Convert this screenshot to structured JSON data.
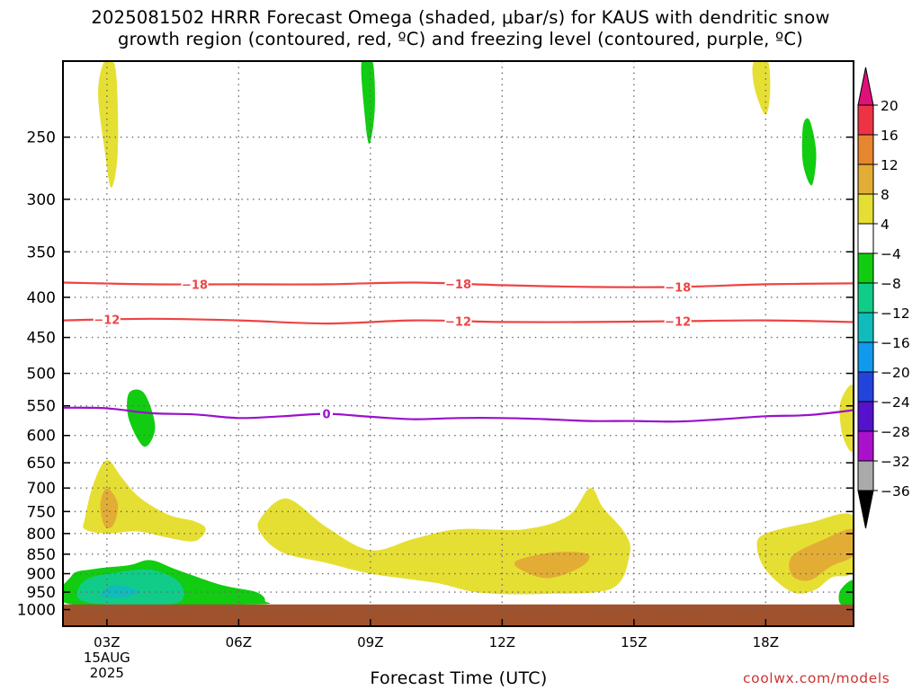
{
  "title": {
    "line1": "2025081502 HRRR Forecast Omega (shaded, μbar/s) for KAUS with dendritic snow",
    "line2": "growth region (contoured, red, ºC) and freezing level (contoured, purple, ºC)"
  },
  "credit": "coolwx.com/models",
  "chart_data": {
    "type": "heatmap",
    "xlabel": "Forecast Time (UTC)",
    "ylabel": "",
    "x_range_hours_utc": [
      2.0,
      20.0
    ],
    "x_ticks": [
      {
        "hour": 3,
        "label": "03Z",
        "sub": [
          "15AUG",
          "2025"
        ]
      },
      {
        "hour": 6,
        "label": "06Z"
      },
      {
        "hour": 9,
        "label": "09Z"
      },
      {
        "hour": 12,
        "label": "12Z"
      },
      {
        "hour": 15,
        "label": "15Z"
      },
      {
        "hour": 18,
        "label": "18Z"
      }
    ],
    "y_axis_pressure_hPa": {
      "scale": "log",
      "reversed": true,
      "range": [
        200,
        1050
      ],
      "ticks": [
        250,
        300,
        350,
        400,
        450,
        500,
        550,
        600,
        650,
        700,
        750,
        800,
        850,
        900,
        950,
        1000
      ]
    },
    "grid": true,
    "surface_fill": {
      "color": "#a0522d",
      "top_hPa": 985
    },
    "colorbar": {
      "ticks": [
        "20",
        "16",
        "12",
        "8",
        "4",
        "−4",
        "−8",
        "−12",
        "−16",
        "−20",
        "−24",
        "−28",
        "−32",
        "−36"
      ],
      "bins": [
        {
          "range": [
            16,
            20
          ],
          "color": "#ee3344"
        },
        {
          "range": [
            12,
            16
          ],
          "color": "#e8852f"
        },
        {
          "range": [
            8,
            12
          ],
          "color": "#e3ad35"
        },
        {
          "range": [
            4,
            8
          ],
          "color": "#e6df33"
        },
        {
          "range": [
            -4,
            4
          ],
          "color": "#ffffff"
        },
        {
          "range": [
            -8,
            -4
          ],
          "color": "#11cc11"
        },
        {
          "range": [
            -12,
            -8
          ],
          "color": "#11cc88"
        },
        {
          "range": [
            -16,
            -12
          ],
          "color": "#11bbbb"
        },
        {
          "range": [
            -20,
            -16
          ],
          "color": "#1199ee"
        },
        {
          "range": [
            -24,
            -20
          ],
          "color": "#2244dd"
        },
        {
          "range": [
            -28,
            -24
          ],
          "color": "#5511cc"
        },
        {
          "range": [
            -32,
            -28
          ],
          "color": "#aa11cc"
        },
        {
          "range": [
            -36,
            -32
          ],
          "color": "#aaaaaa"
        }
      ],
      "over_color": "#e0107a",
      "under_color": "#000000"
    },
    "omega_regions": [
      {
        "color": "#e6df33",
        "points": [
          [
            2.95,
            200
          ],
          [
            3.2,
            205
          ],
          [
            3.25,
            260
          ],
          [
            3.1,
            290
          ],
          [
            2.95,
            260
          ],
          [
            2.8,
            220
          ]
        ]
      },
      {
        "color": "#11cc11",
        "points": [
          [
            8.8,
            200
          ],
          [
            9.05,
            200
          ],
          [
            9.1,
            230
          ],
          [
            8.97,
            255
          ],
          [
            8.85,
            228
          ]
        ]
      },
      {
        "color": "#e6df33",
        "points": [
          [
            17.75,
            200
          ],
          [
            18.05,
            200
          ],
          [
            18.1,
            220
          ],
          [
            18.0,
            234
          ],
          [
            17.8,
            222
          ],
          [
            17.7,
            208
          ]
        ]
      },
      {
        "color": "#11cc11",
        "points": [
          [
            18.85,
            242
          ],
          [
            19.0,
            238
          ],
          [
            19.15,
            262
          ],
          [
            19.05,
            288
          ],
          [
            18.85,
            270
          ]
        ]
      },
      {
        "color": "#11cc11",
        "points": [
          [
            3.5,
            530
          ],
          [
            3.85,
            530
          ],
          [
            4.1,
            585
          ],
          [
            3.85,
            620
          ],
          [
            3.5,
            572
          ]
        ]
      },
      {
        "color": "#e6df33",
        "points": [
          [
            20.0,
            520
          ],
          [
            19.7,
            545
          ],
          [
            19.75,
            600
          ],
          [
            20.0,
            625
          ]
        ]
      },
      {
        "color": "#e6df33",
        "points": [
          [
            2.5,
            765
          ],
          [
            2.7,
            690
          ],
          [
            3.0,
            645
          ],
          [
            3.35,
            680
          ],
          [
            3.75,
            720
          ],
          [
            4.4,
            757
          ],
          [
            5.0,
            772
          ],
          [
            5.25,
            790
          ],
          [
            5.0,
            818
          ],
          [
            4.4,
            810
          ],
          [
            3.7,
            795
          ],
          [
            3.0,
            800
          ],
          [
            2.5,
            790
          ]
        ]
      },
      {
        "color": "#e3ad35",
        "points": [
          [
            2.85,
            735
          ],
          [
            3.0,
            700
          ],
          [
            3.25,
            733
          ],
          [
            3.15,
            780
          ],
          [
            2.95,
            783
          ]
        ]
      },
      {
        "color": "#e6df33",
        "points": [
          [
            6.5,
            765
          ],
          [
            7.1,
            722
          ],
          [
            8.0,
            785
          ],
          [
            9.0,
            840
          ],
          [
            10.0,
            812
          ],
          [
            11.0,
            790
          ],
          [
            12.5,
            790
          ],
          [
            13.5,
            760
          ],
          [
            14.0,
            700
          ],
          [
            14.3,
            742
          ],
          [
            14.8,
            800
          ],
          [
            14.9,
            852
          ],
          [
            14.5,
            940
          ],
          [
            13.0,
            955
          ],
          [
            11.5,
            952
          ],
          [
            10.5,
            925
          ],
          [
            9.0,
            900
          ],
          [
            8.0,
            872
          ],
          [
            7.0,
            846
          ],
          [
            6.5,
            800
          ]
        ]
      },
      {
        "color": "#e3ad35",
        "points": [
          [
            12.35,
            865
          ],
          [
            13.2,
            845
          ],
          [
            13.95,
            850
          ],
          [
            13.8,
            882
          ],
          [
            13.05,
            912
          ],
          [
            12.4,
            888
          ]
        ]
      },
      {
        "color": "#e6df33",
        "points": [
          [
            20.0,
            760
          ],
          [
            19.0,
            775
          ],
          [
            18.0,
            800
          ],
          [
            17.8,
            830
          ],
          [
            18.0,
            890
          ],
          [
            18.6,
            950
          ],
          [
            19.1,
            945
          ],
          [
            19.5,
            910
          ],
          [
            20.0,
            890
          ]
        ]
      },
      {
        "color": "#e3ad35",
        "points": [
          [
            20.0,
            790
          ],
          [
            19.3,
            815
          ],
          [
            18.6,
            855
          ],
          [
            18.6,
            905
          ],
          [
            19.0,
            918
          ],
          [
            19.5,
            880
          ],
          [
            20.0,
            852
          ]
        ]
      },
      {
        "color": "#11cc11",
        "points": [
          [
            2.2,
            985
          ],
          [
            2.2,
            905
          ],
          [
            2.7,
            888
          ],
          [
            3.5,
            878
          ],
          [
            4.0,
            865
          ],
          [
            4.6,
            890
          ],
          [
            5.6,
            930
          ],
          [
            6.4,
            950
          ],
          [
            6.6,
            975
          ],
          [
            6.3,
            985
          ]
        ]
      },
      {
        "color": "#11cc88",
        "points": [
          [
            2.35,
            968
          ],
          [
            2.5,
            918
          ],
          [
            3.2,
            897
          ],
          [
            4.0,
            890
          ],
          [
            4.6,
            918
          ],
          [
            4.75,
            962
          ],
          [
            4.4,
            985
          ],
          [
            3.0,
            985
          ]
        ]
      },
      {
        "color": "#11bbbb",
        "points": [
          [
            2.85,
            957
          ],
          [
            3.1,
            932
          ],
          [
            3.45,
            935
          ],
          [
            3.75,
            950
          ],
          [
            3.4,
            965
          ],
          [
            3.0,
            965
          ]
        ]
      },
      {
        "color": "#11cc11",
        "points": [
          [
            20.0,
            918
          ],
          [
            19.7,
            945
          ],
          [
            19.7,
            983
          ],
          [
            20.0,
            985
          ]
        ]
      }
    ],
    "contours": [
      {
        "name": "-18",
        "color": "#ee4444",
        "kind": "dendritic snow growth",
        "points": [
          [
            2.0,
            383
          ],
          [
            4.0,
            385
          ],
          [
            6.0,
            385
          ],
          [
            8.0,
            385
          ],
          [
            10.0,
            383
          ],
          [
            12.0,
            386
          ],
          [
            14.0,
            388
          ],
          [
            16.0,
            388
          ],
          [
            18.0,
            385
          ],
          [
            20.0,
            384
          ]
        ],
        "labels": [
          5.0,
          11.0,
          16.0
        ]
      },
      {
        "name": "-12",
        "color": "#ee4444",
        "kind": "dendritic snow growth",
        "points": [
          [
            2.0,
            428
          ],
          [
            4.0,
            426
          ],
          [
            6.0,
            428
          ],
          [
            8.0,
            432
          ],
          [
            10.0,
            428
          ],
          [
            12.0,
            430
          ],
          [
            14.0,
            430
          ],
          [
            16.0,
            429
          ],
          [
            18.0,
            428
          ],
          [
            20.0,
            430
          ]
        ],
        "labels": [
          3.0,
          11.0,
          16.0
        ]
      },
      {
        "name": "0",
        "color": "#9911cc",
        "kind": "freezing level",
        "points": [
          [
            2.0,
            553
          ],
          [
            3.0,
            554
          ],
          [
            4.0,
            562
          ],
          [
            5.0,
            564
          ],
          [
            6.0,
            570
          ],
          [
            7.0,
            567
          ],
          [
            8.0,
            563
          ],
          [
            9.0,
            568
          ],
          [
            10.0,
            572
          ],
          [
            11.0,
            570
          ],
          [
            12.0,
            570
          ],
          [
            13.0,
            572
          ],
          [
            14.0,
            575
          ],
          [
            15.0,
            575
          ],
          [
            16.0,
            576
          ],
          [
            17.0,
            572
          ],
          [
            18.0,
            567
          ],
          [
            19.0,
            565
          ],
          [
            20.0,
            557
          ]
        ],
        "labels": [
          8.0
        ]
      }
    ]
  }
}
